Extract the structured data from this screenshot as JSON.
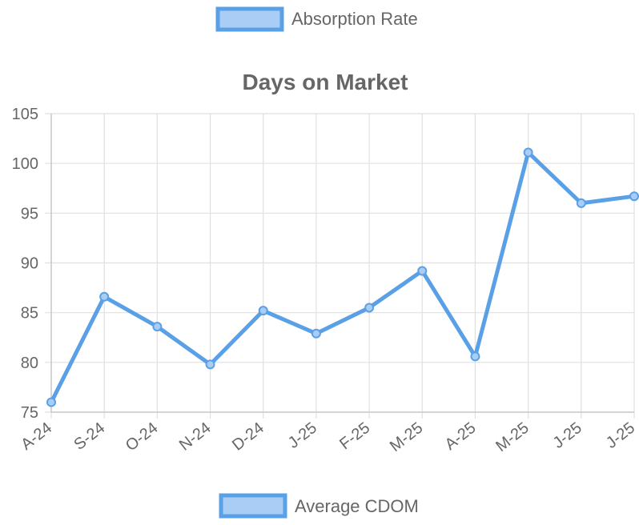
{
  "top_legend": {
    "label": "Absorption Rate"
  },
  "bottom_legend": {
    "label": "Average CDOM"
  },
  "colors": {
    "line": "#5aa0e6",
    "fill": "#a9cdf5",
    "grid": "#e0e0e0",
    "text": "#666666"
  },
  "chart_data": {
    "type": "line",
    "title": "Days on Market",
    "categories": [
      "A-24",
      "S-24",
      "O-24",
      "N-24",
      "D-24",
      "J-25",
      "F-25",
      "M-25",
      "A-25",
      "M-25",
      "J-25",
      "J-25"
    ],
    "series": [
      {
        "name": "Average CDOM",
        "values": [
          76.0,
          86.6,
          83.6,
          79.8,
          85.2,
          82.9,
          85.5,
          89.2,
          80.6,
          101.1,
          96.0,
          96.7
        ]
      }
    ],
    "ylim": [
      75,
      105
    ],
    "yticks": [
      75,
      80,
      85,
      90,
      95,
      100,
      105
    ],
    "grid": true,
    "legend_placement": [
      "top",
      "bottom"
    ]
  }
}
